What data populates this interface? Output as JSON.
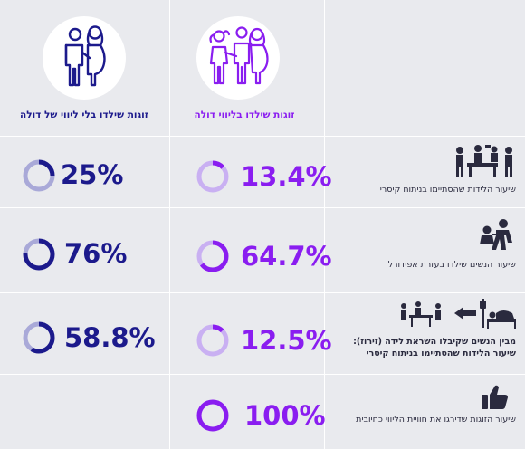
{
  "colors": {
    "purple": "#8a1df0",
    "purple_light": "#c9b0f2",
    "navy": "#1c1a8c",
    "navy_light": "#a9a9d8",
    "background": "#e9eaee"
  },
  "columns": {
    "with_doula": {
      "title": "זוגות שילדו בליווי דולה",
      "icon": "couple-with-doula-icon"
    },
    "without_doula": {
      "title": "זוגות שילדו בלי ליווי של דולה",
      "icon": "couple-icon"
    }
  },
  "rows": [
    {
      "label_lines": [
        "שיעור הלידות שהסתיימו בניתוח קיסרי"
      ],
      "icon": "surgery-team-icon",
      "with_doula": {
        "text": "13.4%",
        "value": 13.4
      },
      "without_doula": {
        "text": "25%",
        "value": 25
      }
    },
    {
      "label_lines": [
        "שיעור הנשים שילדו בעזרת אפידורל"
      ],
      "icon": "epidural-icon",
      "with_doula": {
        "text": "64.7%",
        "value": 64.7
      },
      "without_doula": {
        "text": "76%",
        "value": 76
      }
    },
    {
      "label_lines": [
        "מבין הנשים שקיבלו השראת לידה (זירוז):",
        "שיעור הלידות שהסתיימו בניתוח קיסרי"
      ],
      "icon": "induction-to-surgery-icon",
      "with_doula": {
        "text": "12.5%",
        "value": 12.5
      },
      "without_doula": {
        "text": "58.8%",
        "value": 58.8
      }
    },
    {
      "label_lines": [
        "שיעור הזוגות שדירגו את חוויית הליווי כחיובית"
      ],
      "icon": "thumbs-up-icon",
      "with_doula": {
        "text": "100%",
        "value": 100
      },
      "without_doula": null
    }
  ]
}
